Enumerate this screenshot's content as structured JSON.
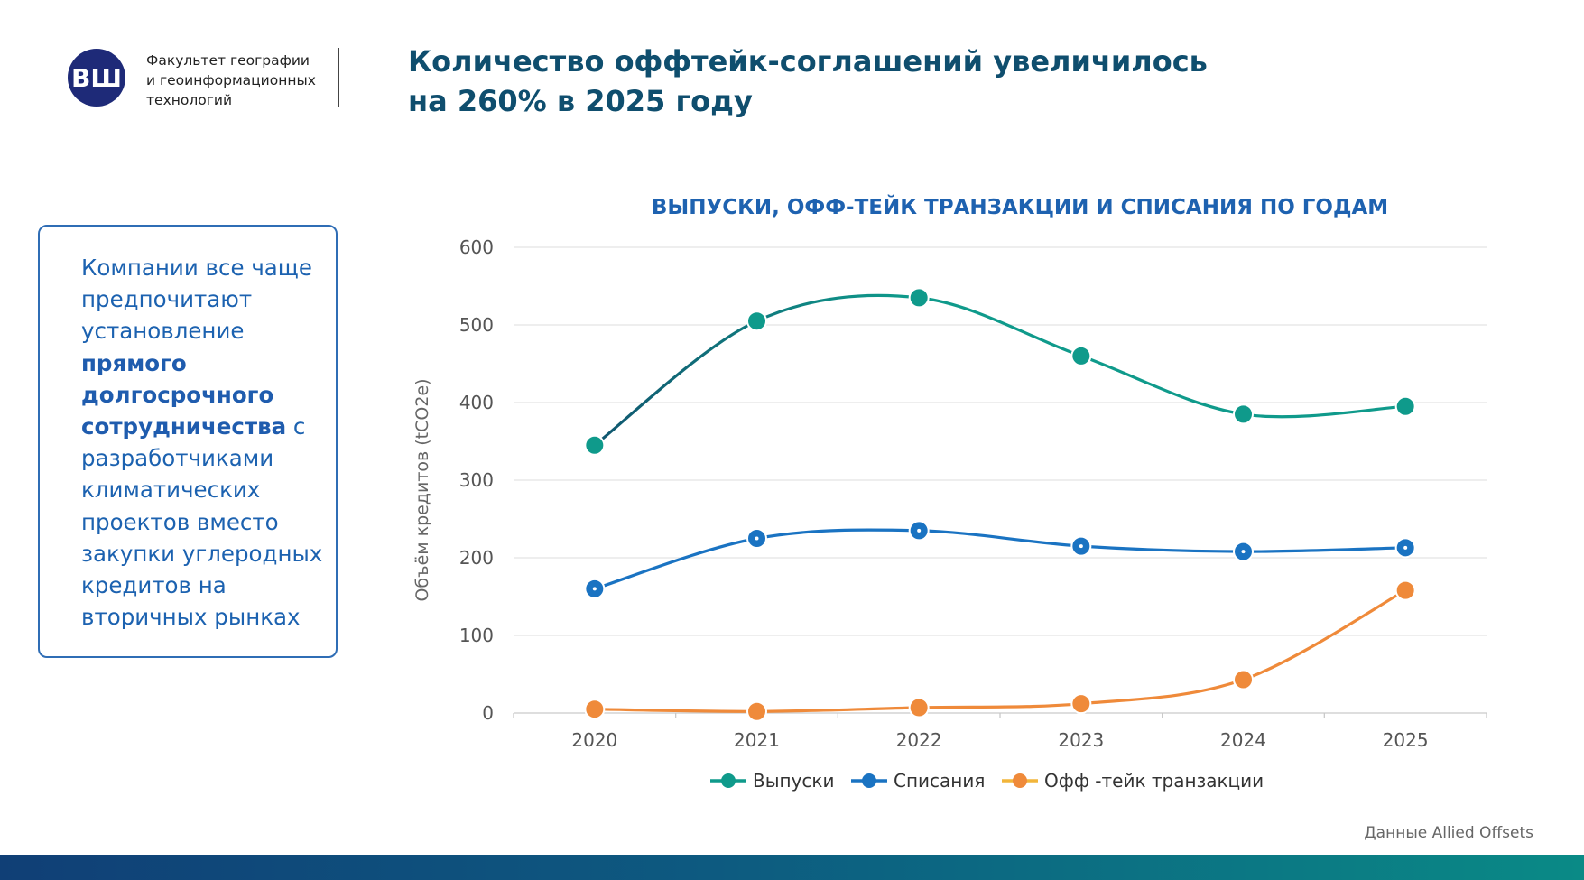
{
  "header": {
    "logo_letters": "ВШ",
    "faculty_text": "Факультет географии\nи геоинформационных\nтехнологий",
    "title": "Количество оффтейк-соглашений увеличилось на 260% в 2025 году"
  },
  "sidebar": {
    "text_before": "Компании все чаще предпочитают установление ",
    "text_bold": "прямого долгосрочного сотрудничества",
    "text_after": " с разработчиками климатических проектов вместо закупки углеродных кредитов на вторичных рынках"
  },
  "footer": {
    "source": "Данные Allied Offsets"
  },
  "colors": {
    "issuances_line": "#0f9a8b",
    "issuances_line_early": "#10566f",
    "retirements": "#1a73c2",
    "offtake": "#ef8a3a",
    "title": "#0f4e6e",
    "chart_title": "#1e62b0"
  },
  "chart_data": {
    "type": "line",
    "title": "ВЫПУСКИ, ОФФ-ТЕЙК ТРАНЗАКЦИИ И СПИСАНИЯ ПО ГОДАМ",
    "xlabel": "",
    "ylabel": "Объём кредитов (tCO2e)",
    "categories": [
      "2020",
      "2021",
      "2022",
      "2023",
      "2024",
      "2025"
    ],
    "ylim": [
      0,
      600
    ],
    "yticks": [
      0,
      100,
      200,
      300,
      400,
      500,
      600
    ],
    "grid": true,
    "legend_position": "bottom",
    "series": [
      {
        "name": "Выпуски",
        "values": [
          345,
          505,
          535,
          460,
          385,
          395
        ],
        "color": "#0f9a8b"
      },
      {
        "name": "Списания",
        "values": [
          160,
          225,
          235,
          215,
          208,
          213
        ],
        "color": "#1a73c2"
      },
      {
        "name": "Офф -тейк транзакции",
        "values": [
          5,
          2,
          7,
          12,
          43,
          158
        ],
        "color": "#ef8a3a"
      }
    ]
  }
}
